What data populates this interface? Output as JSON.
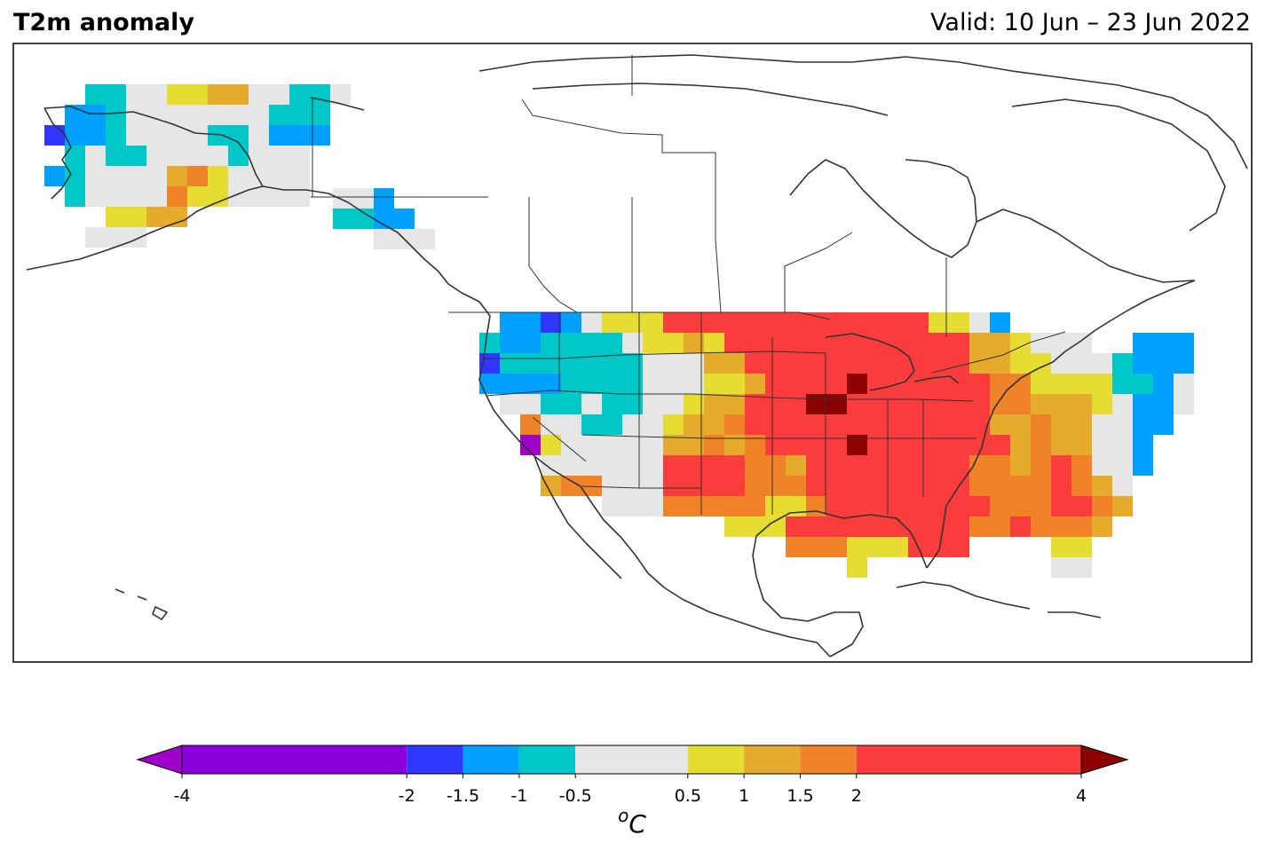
{
  "header": {
    "title": "T2m anomaly",
    "valid": "Valid: 10 Jun – 23 Jun 2022"
  },
  "colorbar": {
    "bounds": [
      -4,
      -2,
      -1.5,
      -1,
      -0.5,
      0.5,
      1,
      1.5,
      2,
      4
    ],
    "tick_labels": [
      "-4",
      "-2",
      "-1.5",
      "-1",
      "-0.5",
      "0.5",
      "1",
      "1.5",
      "2",
      "4"
    ],
    "colors": [
      "#8a00dc",
      "#2e36ff",
      "#00a0ff",
      "#00c8c8",
      "#e6e6e6",
      "#e6dc32",
      "#e6aa2d",
      "#f08228",
      "#fa3c3c"
    ],
    "under_color": "#a000c8",
    "over_color": "#8c0000",
    "unit_base": "o",
    "unit_main": "C"
  },
  "palette": {
    "V": "#a000c8",
    "B": "#2e36ff",
    "S": "#00a0ff",
    "T": "#00c8c8",
    "G": "#e6e6e6",
    "Y": "#e6dc32",
    "O": "#e6aa2d",
    "D": "#f08228",
    "R": "#fa3c3c",
    "M": "#8c0000"
  }
}
